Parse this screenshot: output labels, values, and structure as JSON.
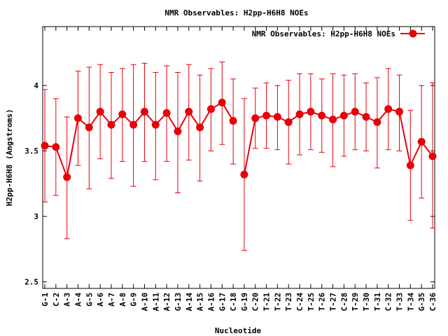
{
  "chart_data": {
    "type": "line",
    "title": "NMR Observables: H2pp-H6H8 NOEs",
    "xlabel": "Nucleotide",
    "ylabel": "H2pp-H6H8 (Angstroms)",
    "ylim": [
      2.45,
      4.45
    ],
    "yticks": [
      2.5,
      3,
      3.5,
      4
    ],
    "ytick_labels": [
      "2.5",
      "3",
      "3.5",
      "4"
    ],
    "legend_position": "top-right",
    "grid": false,
    "color": "#e8000b",
    "categories": [
      "G-1",
      "C-2",
      "A-3",
      "A-4",
      "G-5",
      "A-6",
      "A-7",
      "A-8",
      "G-9",
      "A-10",
      "A-11",
      "A-12",
      "G-13",
      "A-14",
      "A-15",
      "A-16",
      "G-17",
      "C-18",
      "G-19",
      "C-20",
      "T-21",
      "T-22",
      "T-23",
      "C-24",
      "T-25",
      "T-26",
      "T-27",
      "C-28",
      "T-29",
      "T-30",
      "T-31",
      "C-32",
      "T-33",
      "T-34",
      "G-35",
      "C-36"
    ],
    "series": [
      {
        "name": "NMR Observables: H2pp-H6H8 NOEs",
        "segments": [
          {
            "x": [
              1,
              2,
              3,
              4,
              5,
              6,
              7,
              8,
              9,
              10,
              11,
              12,
              13,
              14,
              15,
              16,
              17,
              18
            ],
            "y": [
              3.54,
              3.53,
              3.3,
              3.75,
              3.68,
              3.8,
              3.7,
              3.78,
              3.7,
              3.8,
              3.7,
              3.79,
              3.65,
              3.8,
              3.68,
              3.82,
              3.87,
              3.73
            ],
            "err_low": [
              3.11,
              3.16,
              2.83,
              3.39,
              3.21,
              3.44,
              3.29,
              3.42,
              3.23,
              3.42,
              3.28,
              3.42,
              3.18,
              3.43,
              3.27,
              3.5,
              3.55,
              3.4
            ],
            "err_high": [
              3.97,
              3.9,
              3.76,
              4.11,
              4.14,
              4.16,
              4.1,
              4.13,
              4.16,
              4.17,
              4.1,
              4.15,
              4.1,
              4.16,
              4.08,
              4.13,
              4.18,
              4.05
            ]
          },
          {
            "x": [
              19,
              20,
              21,
              22,
              23,
              24,
              25,
              26,
              27,
              28,
              29,
              30,
              31,
              32,
              33,
              34,
              35,
              36
            ],
            "y": [
              3.32,
              3.75,
              3.77,
              3.76,
              3.72,
              3.78,
              3.8,
              3.77,
              3.74,
              3.77,
              3.8,
              3.76,
              3.72,
              3.82,
              3.8,
              3.39,
              3.57,
              3.46
            ],
            "err_low": [
              2.74,
              3.52,
              3.52,
              3.51,
              3.4,
              3.47,
              3.51,
              3.49,
              3.38,
              3.46,
              3.51,
              3.5,
              3.37,
              3.51,
              3.5,
              2.97,
              3.14,
              2.91
            ],
            "err_high": [
              3.9,
              3.98,
              4.02,
              4.0,
              4.04,
              4.09,
              4.09,
              4.05,
              4.09,
              4.08,
              4.09,
              4.02,
              4.06,
              4.13,
              4.08,
              3.81,
              4.0,
              4.02
            ]
          }
        ]
      }
    ]
  }
}
